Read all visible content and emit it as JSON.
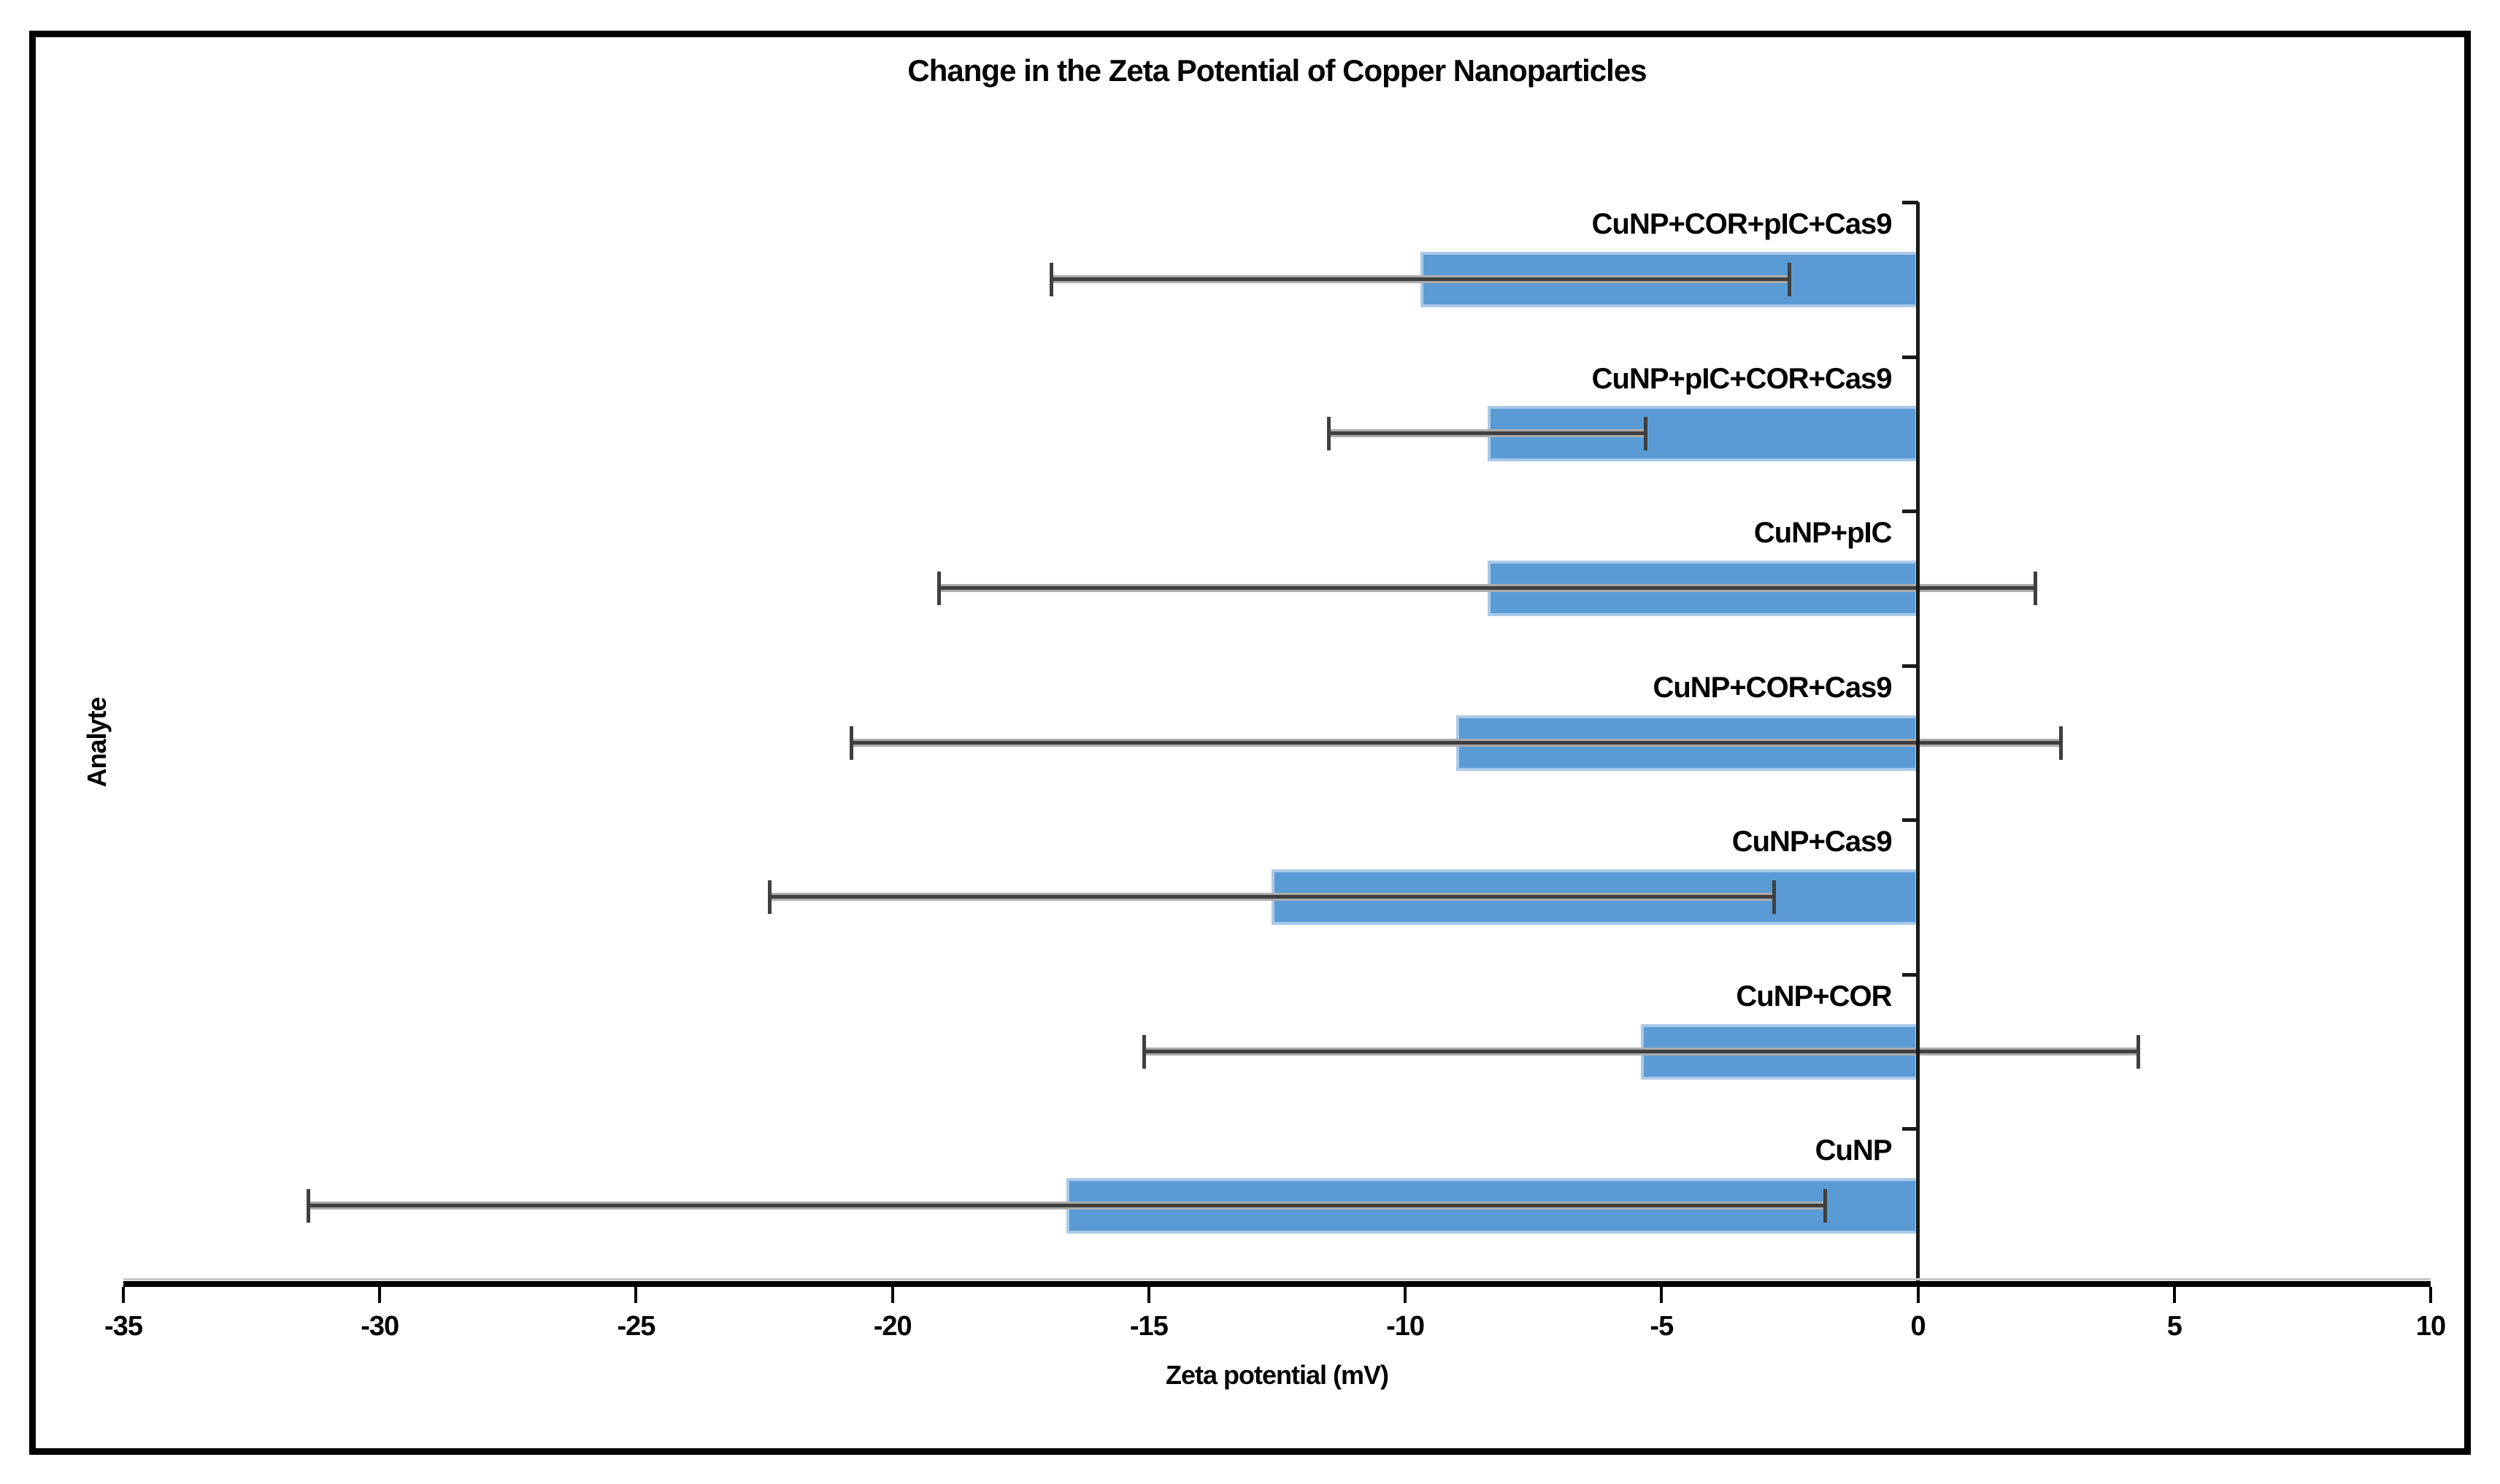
{
  "title": "Change in the Zeta Potential of Copper Nanoparticles",
  "x_axis": {
    "title": "Zeta potential (mV)",
    "tick_labels": [
      "-35",
      "-30",
      "-25",
      "-20",
      "-15",
      "-10",
      "-5",
      "0",
      "5",
      "10"
    ]
  },
  "y_axis": {
    "title": "Analyte"
  },
  "chart_data": {
    "type": "bar",
    "orientation": "horizontal",
    "title": "Change in the Zeta Potential of Copper Nanoparticles",
    "xlabel": "Zeta potential (mV)",
    "ylabel": "Analyte",
    "xlim": [
      -35,
      10
    ],
    "xticks": [
      -35,
      -30,
      -25,
      -20,
      -15,
      -10,
      -5,
      0,
      5,
      10
    ],
    "grid": false,
    "legend": false,
    "bar_color": "#5B9BD5",
    "bar_edge_color": "#A9C9E9",
    "error_core_color": "#3F3F3F",
    "error_halo_color": "#ABABAB",
    "categories_top_to_bottom": [
      "CuNP+COR+pIC+Cas9",
      "CuNP+pIC+COR+Cas9",
      "CuNP+pIC",
      "CuNP+COR+Cas9",
      "CuNP+Cas9",
      "CuNP+COR",
      "CuNP"
    ],
    "values": [
      -9.7,
      -8.4,
      -8.4,
      -9.0,
      -12.6,
      -5.4,
      -16.6
    ],
    "errors": [
      7.2,
      3.1,
      10.7,
      11.8,
      9.8,
      9.7,
      14.8
    ]
  }
}
